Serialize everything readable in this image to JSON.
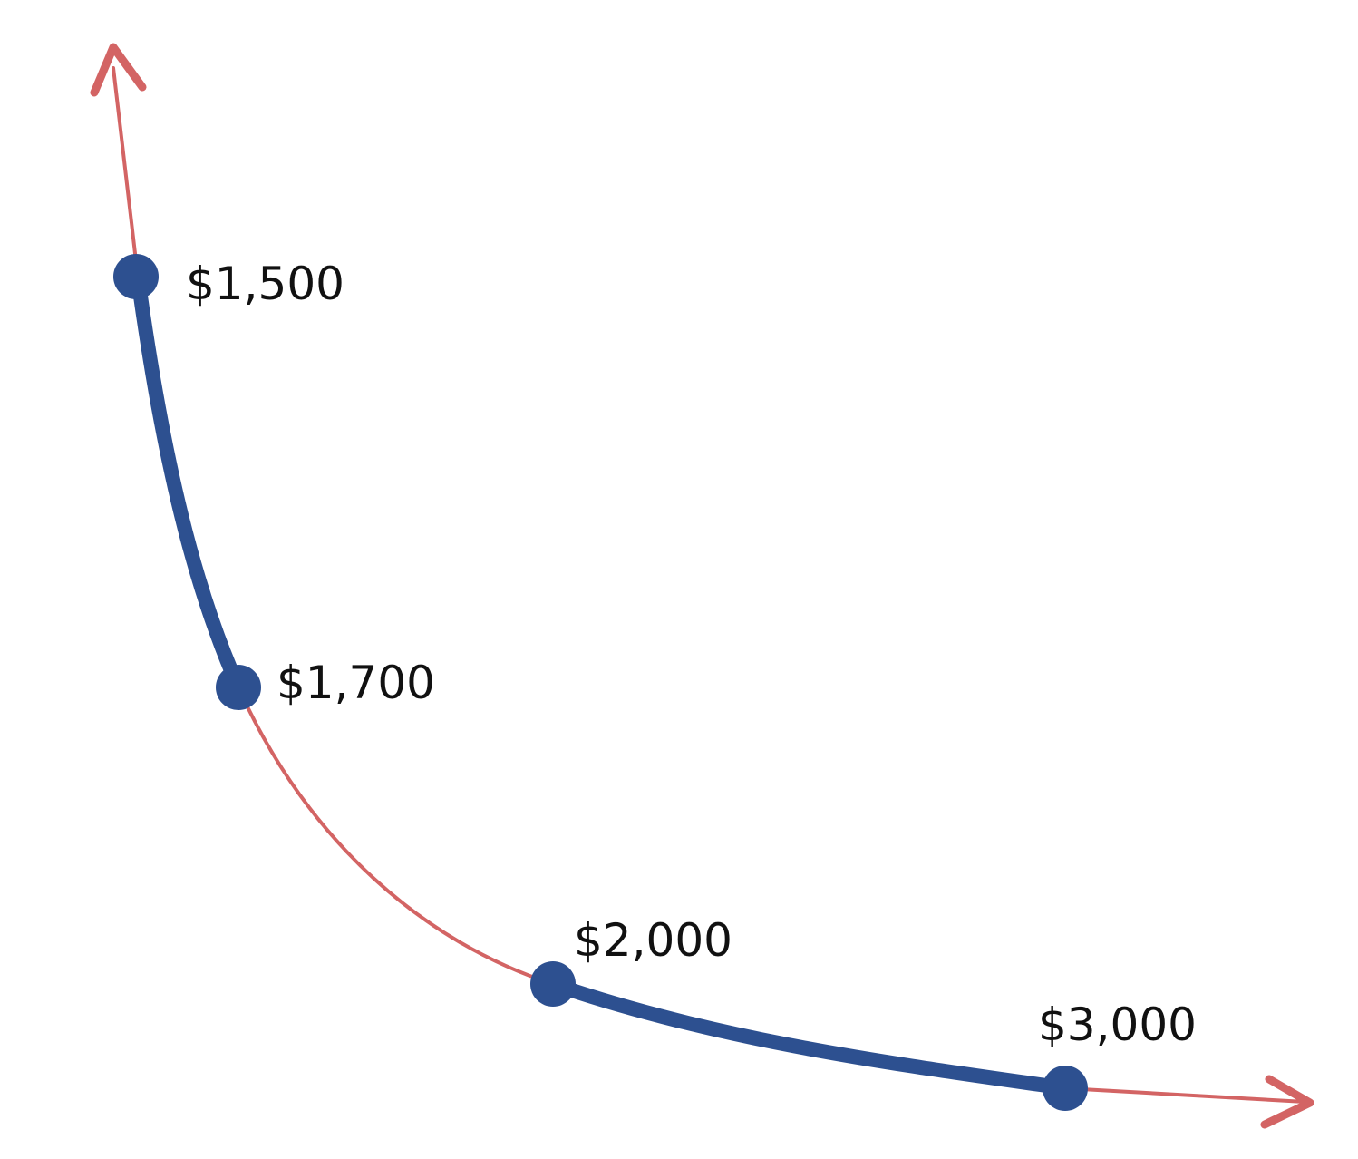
{
  "colors": {
    "curve": "#d36464",
    "highlight": "#2d5090",
    "label": "#111111",
    "background": "#ffffff"
  },
  "curve": {
    "arrows": [
      "up-arrow-icon",
      "right-arrow-icon"
    ],
    "highlighted_segments": [
      [
        0,
        1
      ],
      [
        2,
        3
      ]
    ]
  },
  "points": [
    {
      "label": "$1,500"
    },
    {
      "label": "$1,700"
    },
    {
      "label": "$2,000"
    },
    {
      "label": "$3,000"
    }
  ]
}
